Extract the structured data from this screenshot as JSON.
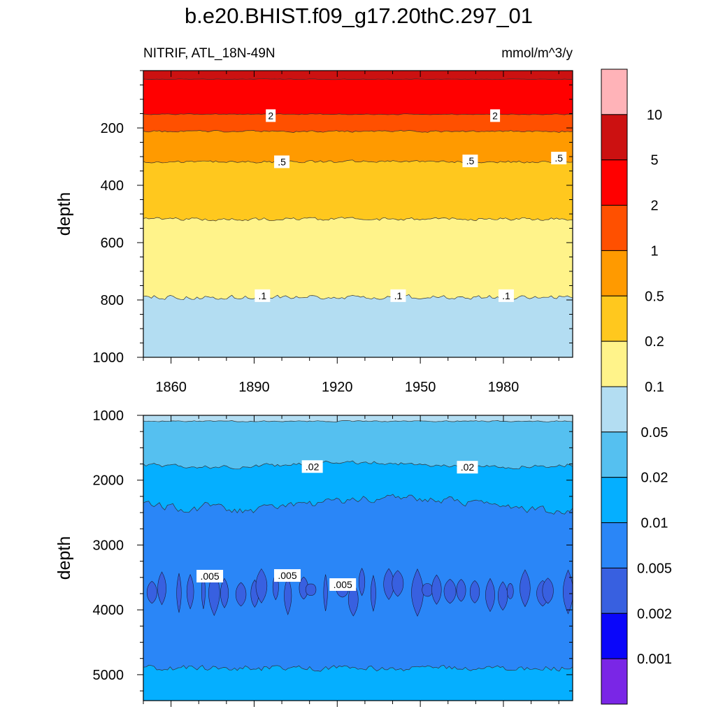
{
  "chart_data": {
    "type": "contour",
    "title": "b.e20.BHIST.f09_g17.20thC.297_01",
    "left_subtitle": "NITRIF, ATL_18N-49N",
    "right_subtitle": "mmol/m^3/y",
    "x_range": [
      1850,
      2005
    ],
    "x_ticks": [
      1860,
      1890,
      1920,
      1950,
      1980
    ],
    "panels": [
      {
        "ylabel": "depth",
        "ylim": [
          0,
          1000
        ],
        "y_ticks": [
          200,
          400,
          600,
          800,
          1000
        ],
        "boundaries": [
          {
            "level": 5,
            "mean_depth": 30,
            "amp": 1,
            "contour_label": ""
          },
          {
            "level": 2,
            "mean_depth": 152,
            "amp": 1.5,
            "contour_label": "2"
          },
          {
            "level": 1,
            "mean_depth": 212,
            "amp": 3,
            "contour_label": ""
          },
          {
            "level": 0.5,
            "mean_depth": 318,
            "amp": 4,
            "contour_label": ".5"
          },
          {
            "level": 0.2,
            "mean_depth": 518,
            "amp": 5,
            "contour_label": ""
          },
          {
            "level": 0.1,
            "mean_depth": 790,
            "amp": 7,
            "contour_label": ".1"
          }
        ],
        "contour_labels": [
          {
            "text": "2",
            "x": 1896,
            "depth": 157
          },
          {
            "text": "2",
            "x": 1977,
            "depth": 157
          },
          {
            "text": ".5",
            "x": 1900,
            "depth": 318
          },
          {
            "text": ".5",
            "x": 1968,
            "depth": 315
          },
          {
            "text": ".5",
            "x": 2000,
            "depth": 305
          },
          {
            "text": ".1",
            "x": 1893,
            "depth": 785
          },
          {
            "text": ".1",
            "x": 1942,
            "depth": 785
          },
          {
            "text": ".1",
            "x": 1981,
            "depth": 785
          }
        ]
      },
      {
        "ylabel": "depth",
        "ylim": [
          1000,
          5400
        ],
        "y_ticks": [
          1000,
          2000,
          3000,
          4000,
          5000
        ],
        "boundaries": [
          {
            "level": 0.05,
            "mean_depth": 1090,
            "amp": 8,
            "contour_label": ""
          },
          {
            "level": 0.02,
            "mean_depth": 1760,
            "amp": 25,
            "contour_label": ".02"
          },
          {
            "level": 0.01,
            "mean_depth": 2370,
            "amp": 50,
            "contour_label": ""
          },
          {
            "level": 0.005,
            "mean_depth": 4900,
            "amp": 40,
            "contour_label": ""
          }
        ],
        "deep_patches": {
          "level": 0.005,
          "depth_range": [
            3300,
            4100
          ]
        },
        "contour_labels": [
          {
            "text": ".02",
            "x": 1911,
            "depth": 1790
          },
          {
            "text": ".02",
            "x": 1967,
            "depth": 1800
          },
          {
            "text": ".005",
            "x": 1874,
            "depth": 3480
          },
          {
            "text": ".005",
            "x": 1902,
            "depth": 3470
          },
          {
            "text": ".005",
            "x": 1922,
            "depth": 3610
          }
        ]
      }
    ],
    "colorbar": {
      "levels": [
        "10",
        "5",
        "2",
        "1",
        "0.5",
        "0.2",
        "0.1",
        "0.05",
        "0.02",
        "0.01",
        "0.005",
        "0.002",
        "0.001"
      ],
      "colors_top_to_bottom": [
        "#FFB3B8",
        "#CC1111",
        "#FF0000",
        "#FF5000",
        "#FF9A00",
        "#FFC81E",
        "#FFF38A",
        "#B3DDF2",
        "#55C0F0",
        "#05AFFF",
        "#2A86F7",
        "#3860E0",
        "#0A06FA",
        "#7A26E6"
      ]
    }
  }
}
